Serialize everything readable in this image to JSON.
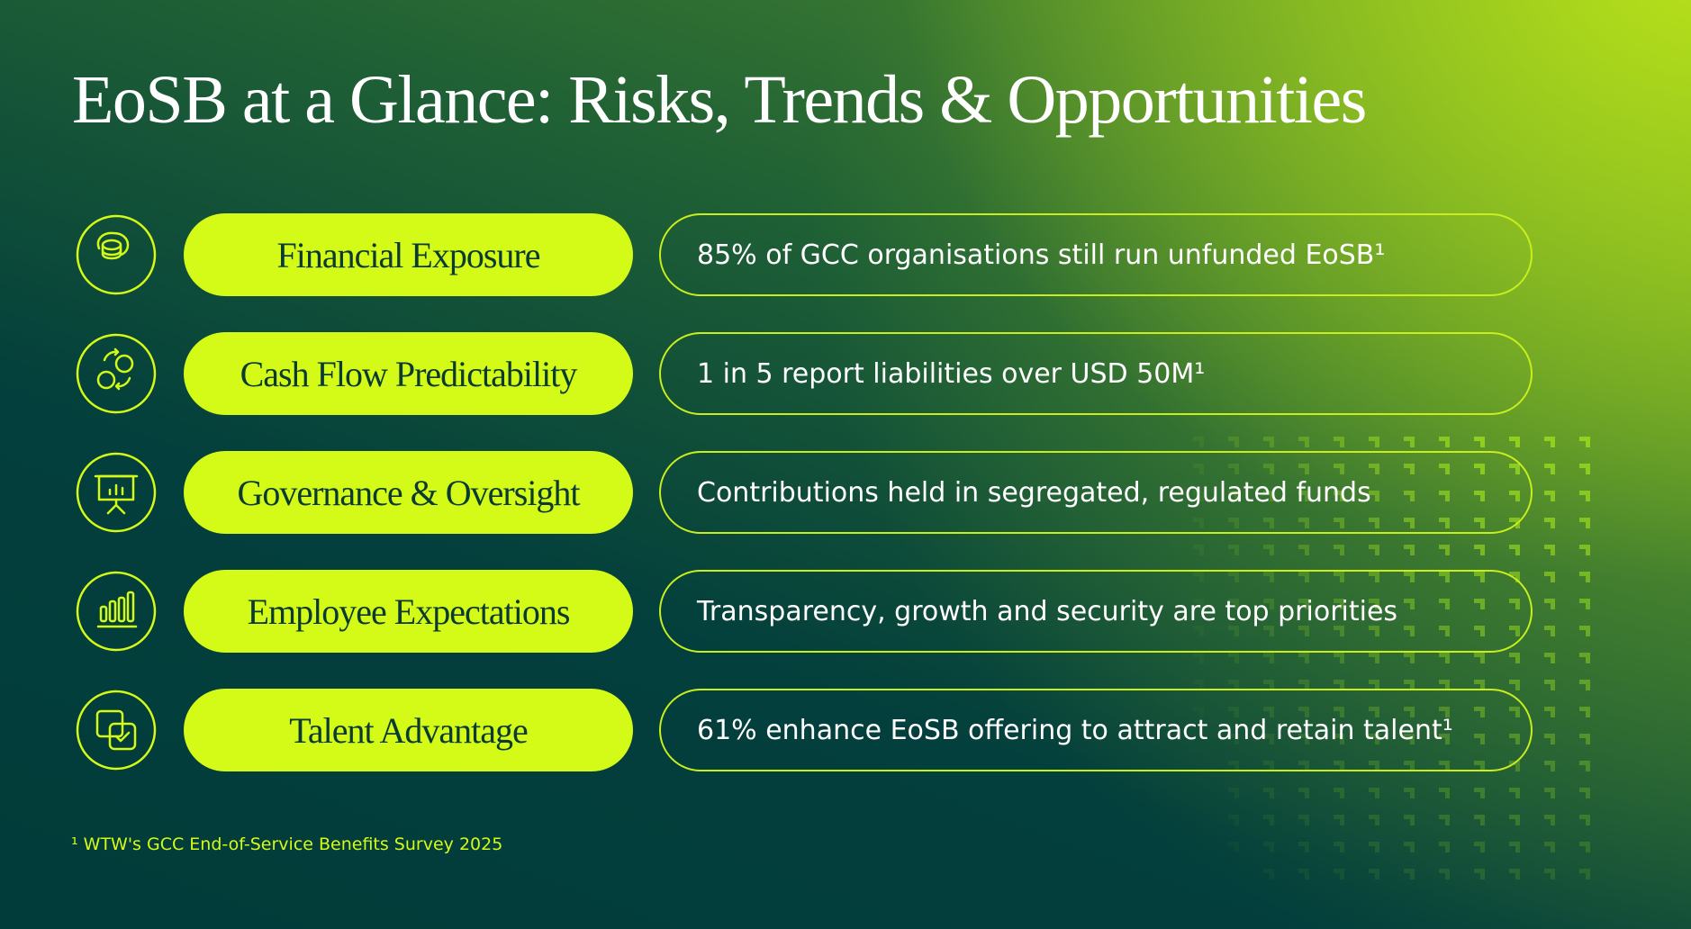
{
  "title": "EoSB at a Glance: Risks, Trends & Opportunities",
  "rows": [
    {
      "label": "Financial Exposure",
      "text": "85% of GCC organisations still run unfunded EoSB¹"
    },
    {
      "label": "Cash Flow Predictability",
      "text": "1 in 5 report liabilities over USD 50M¹"
    },
    {
      "label": "Governance & Oversight",
      "text": "Contributions held in segregated, regulated funds"
    },
    {
      "label": "Employee Expectations",
      "text": "Transparency, growth and security are top priorities"
    },
    {
      "label": "Talent Advantage",
      "text": "61% enhance EoSB offering to attract and retain talent¹"
    }
  ],
  "footnote": "¹ WTW's GCC End-of-Service Benefits Survey 2025"
}
